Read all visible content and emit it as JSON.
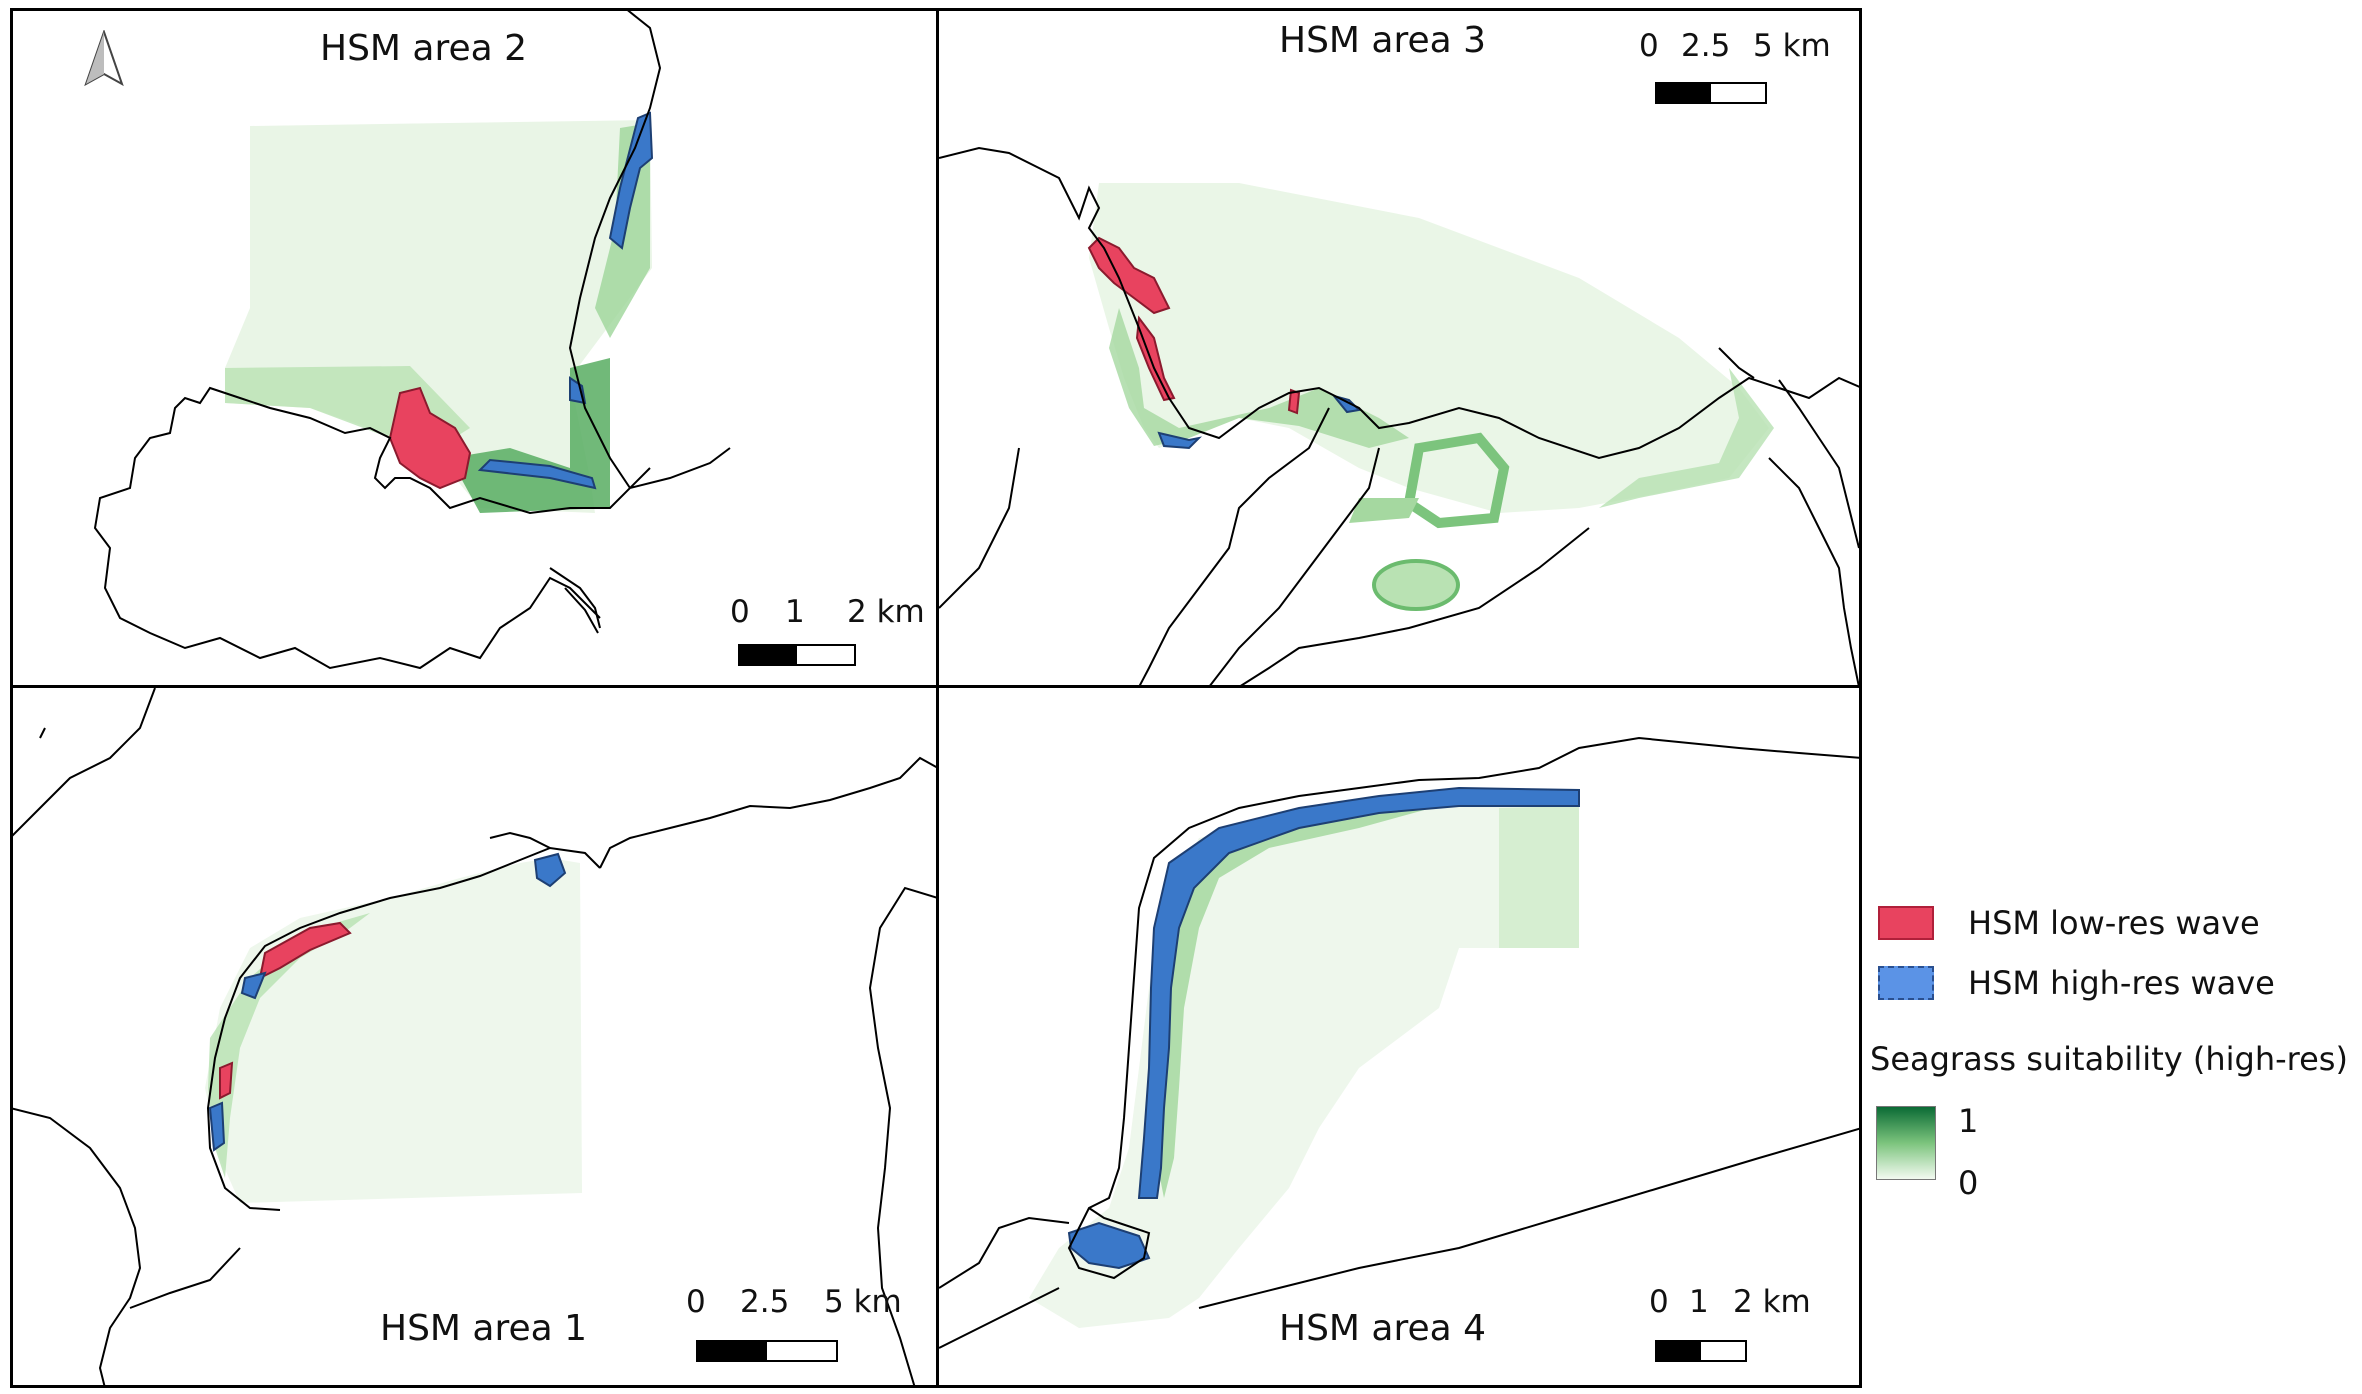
{
  "panels": {
    "area2": {
      "title": "HSM area 2",
      "scalebar": {
        "labels": [
          "0",
          "1",
          "2 km"
        ]
      }
    },
    "area3": {
      "title": "HSM area 3",
      "scalebar": {
        "labels": [
          "0",
          "2.5",
          "5 km"
        ]
      }
    },
    "area1": {
      "title": "HSM area 1",
      "scalebar": {
        "labels": [
          "0",
          "2.5",
          "5 km"
        ]
      }
    },
    "area4": {
      "title": "HSM area 4",
      "scalebar": {
        "labels": [
          "0",
          "1",
          "2 km"
        ]
      }
    }
  },
  "north_arrow": {
    "icon": "north-arrow-icon"
  },
  "legend": {
    "items": [
      {
        "label": "HSM low-res wave",
        "color": "#e8435f"
      },
      {
        "label": "HSM high-res wave",
        "color": "#5b93e6"
      }
    ],
    "gradient": {
      "title": "Seagrass suitability (high-res)",
      "max_label": "1",
      "min_label": "0",
      "color_high": "#0b6b35",
      "color_low": "#f3faf1"
    }
  }
}
